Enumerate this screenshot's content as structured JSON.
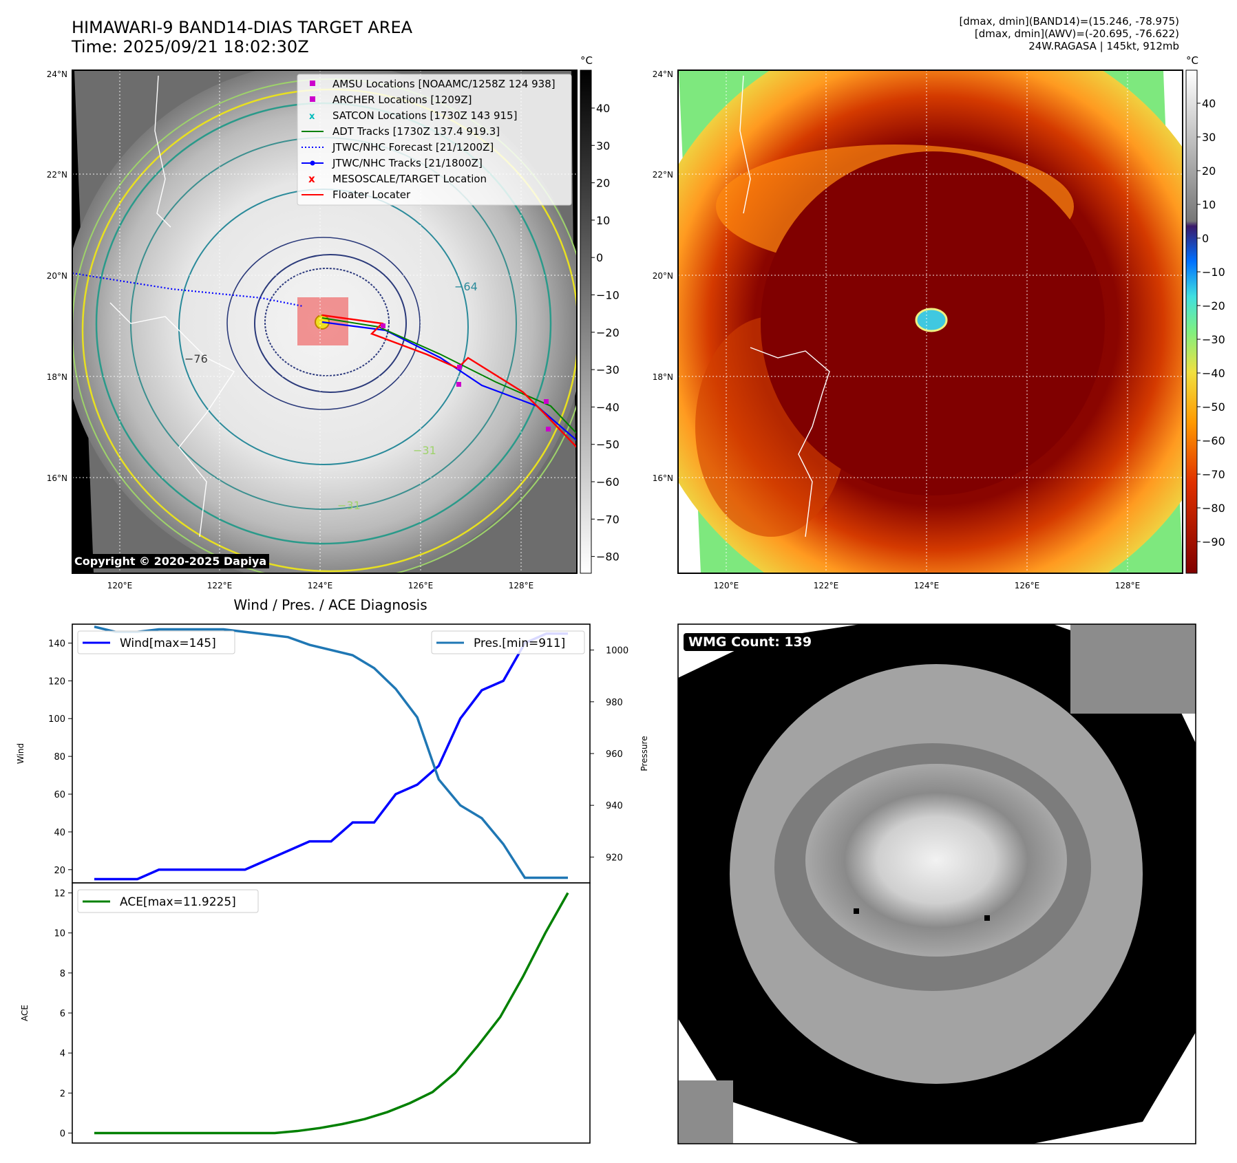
{
  "header": {
    "title_line1": "HIMAWARI-9 BAND14-DIAS TARGET AREA",
    "title_line2": "Time: 2025/09/21 18:02:30Z",
    "stats_line1": "[dmax, dmin](BAND14)=(15.246, -78.975)",
    "stats_line2": "[dmax, dmin](AWV)=(-20.695, -76.622)",
    "stats_line3": "24W.RAGASA | 145kt, 912mb"
  },
  "copyright": "Copyright © 2020-2025 Dapiya",
  "map": {
    "lat_ticks": [
      "24°N",
      "22°N",
      "20°N",
      "18°N",
      "16°N"
    ],
    "lon_ticks": [
      "120°E",
      "122°E",
      "124°E",
      "126°E",
      "128°E"
    ],
    "colorbar_unit": "°C",
    "colorbar_left_ticks": [
      "40",
      "30",
      "20",
      "10",
      "0",
      "−10",
      "−20",
      "−30",
      "−40",
      "−50",
      "−60",
      "−70",
      "−80"
    ],
    "colorbar_right_ticks": [
      "40",
      "30",
      "20",
      "10",
      "0",
      "−10",
      "−20",
      "−30",
      "−40",
      "−50",
      "−60",
      "−70",
      "−80",
      "−90"
    ],
    "contour_labels": [
      "−64",
      "−76",
      "−31",
      "−31"
    ],
    "legend": [
      {
        "label": "AMSU Locations [NOAAMC/1258Z 124 938]",
        "color": "#cc00cc",
        "marker": "square"
      },
      {
        "label": "ARCHER Locations [1209Z]",
        "color": "#cc00cc",
        "marker": "square"
      },
      {
        "label": "SATCON Locations [1730Z 143 915]",
        "color": "#00bbbb",
        "marker": "x"
      },
      {
        "label": "ADT Tracks [1730Z 137.4 919.3]",
        "color": "#008000",
        "marker": "line"
      },
      {
        "label": "JTWC/NHC Forecast [21/1200Z]",
        "color": "#0000ff",
        "marker": "dotted"
      },
      {
        "label": "JTWC/NHC Tracks [21/1800Z]",
        "color": "#0000ff",
        "marker": "line-dot"
      },
      {
        "label": "MESOSCALE/TARGET Location",
        "color": "#ff0000",
        "marker": "x"
      },
      {
        "label": "Floater Locater",
        "color": "#ff0000",
        "marker": "line"
      }
    ]
  },
  "diagnosis_title": "Wind / Pres. / ACE Diagnosis",
  "wmg_label": "WMG Count: 139",
  "chart_data": [
    {
      "type": "line",
      "title": "Wind / Pres. / ACE Diagnosis",
      "ylabel": "Wind",
      "y2label": "Pressure",
      "ylim": [
        13,
        150
      ],
      "y2lim": [
        910,
        1010
      ],
      "yticks": [
        20,
        40,
        60,
        80,
        100,
        120,
        140
      ],
      "y2ticks": [
        920,
        940,
        960,
        980,
        1000
      ],
      "series": [
        {
          "name": "Wind[max=145]",
          "color": "#0000ff",
          "axis": "left",
          "values": [
            15,
            15,
            15,
            20,
            20,
            20,
            20,
            20,
            25,
            30,
            35,
            35,
            45,
            45,
            60,
            65,
            75,
            100,
            115,
            120,
            140,
            145,
            145
          ]
        },
        {
          "name": "Pres.[min=911]",
          "color": "#1f77b4",
          "axis": "right",
          "values": [
            1009,
            1007,
            1007,
            1008,
            1008,
            1008,
            1008,
            1007,
            1006,
            1005,
            1002,
            1000,
            998,
            993,
            985,
            974,
            950,
            940,
            935,
            925,
            912,
            912,
            912
          ]
        }
      ],
      "x": [
        0,
        1,
        2,
        3,
        4,
        5,
        6,
        7,
        8,
        9,
        10,
        11,
        12,
        13,
        14,
        15,
        16,
        17,
        18,
        19,
        20,
        21,
        22
      ]
    },
    {
      "type": "line",
      "ylabel": "ACE",
      "ylim": [
        -0.5,
        12.5
      ],
      "yticks": [
        0,
        2,
        4,
        6,
        8,
        10,
        12
      ],
      "series": [
        {
          "name": "ACE[max=11.9225]",
          "color": "#008000",
          "values": [
            0,
            0,
            0,
            0,
            0,
            0,
            0,
            0,
            0,
            0.1,
            0.25,
            0.45,
            0.7,
            1.05,
            1.5,
            2.05,
            3.0,
            4.35,
            5.8,
            7.8,
            10.0,
            12.0
          ]
        }
      ],
      "x": [
        0,
        1,
        2,
        3,
        4,
        5,
        6,
        7,
        8,
        9,
        10,
        11,
        12,
        13,
        14,
        15,
        16,
        17,
        18,
        19,
        20,
        21
      ]
    }
  ]
}
